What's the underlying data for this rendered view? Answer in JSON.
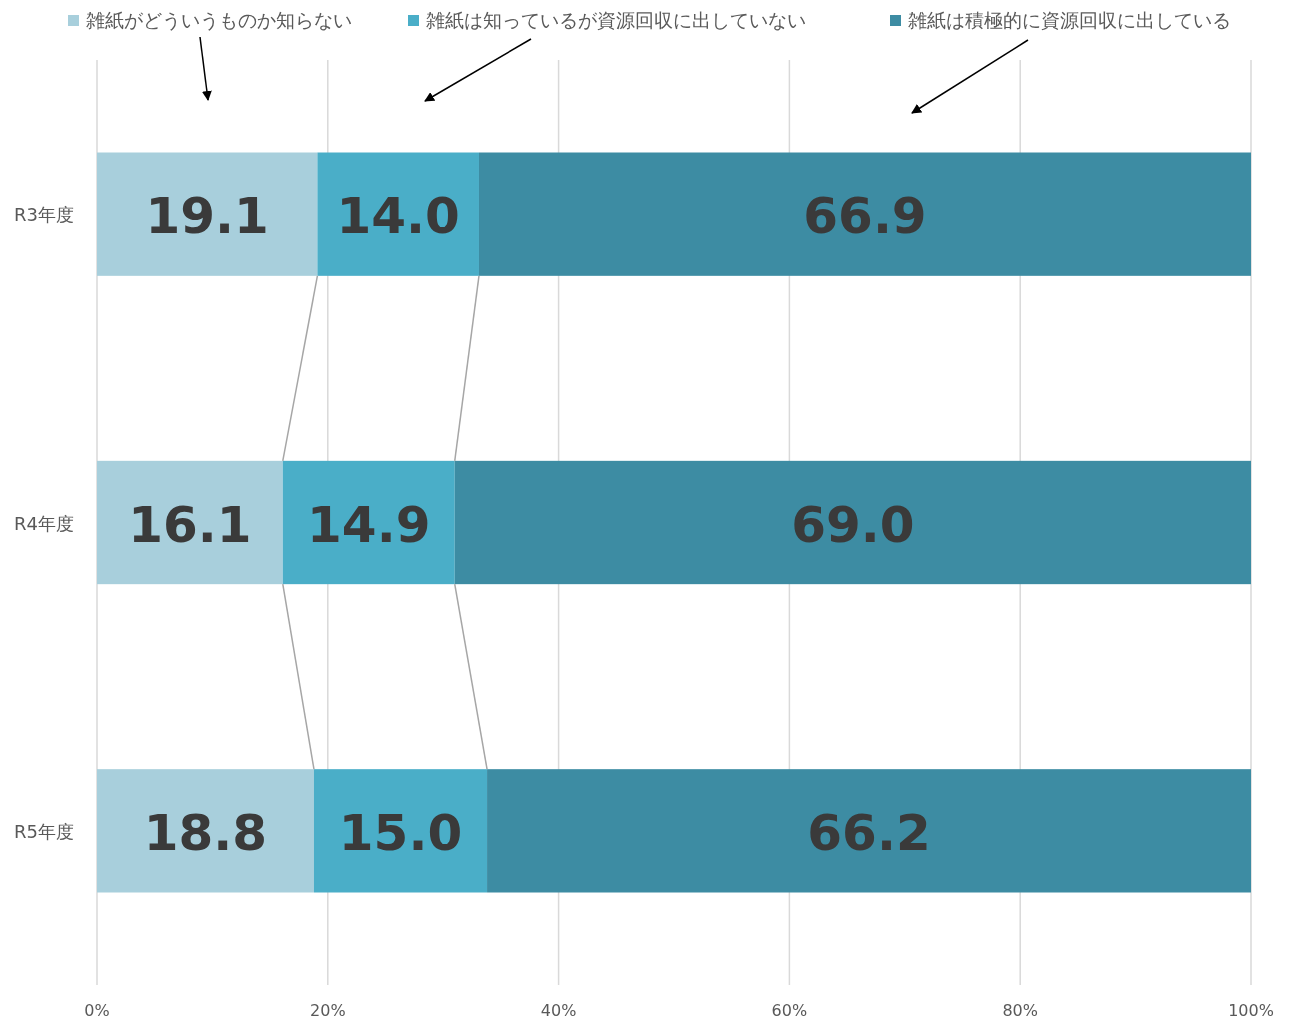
{
  "chart_data": {
    "type": "bar",
    "orientation": "horizontal",
    "stacked": true,
    "categories": [
      "R3年度",
      "R4年度",
      "R5年度"
    ],
    "series": [
      {
        "name": "雑紙がどういうものか知らない",
        "color": "#a8cfdc",
        "values": [
          19.1,
          16.1,
          18.8
        ],
        "value_labels": [
          "19.1",
          "16.1",
          "18.8"
        ]
      },
      {
        "name": "雑紙は知っているが資源回収に出していない",
        "color": "#4aaec8",
        "values": [
          14.0,
          14.9,
          15.0
        ],
        "value_labels": [
          "14.0",
          "14.9",
          "15.0"
        ]
      },
      {
        "name": "雑紙は積極的に資源回収に出している",
        "color": "#3d8ca3",
        "values": [
          66.9,
          69.0,
          66.2
        ],
        "value_labels": [
          "66.9",
          "69.0",
          "66.2"
        ]
      }
    ],
    "xlim": [
      0,
      100
    ],
    "xticks": [
      {
        "value": 0,
        "label": "0%"
      },
      {
        "value": 20,
        "label": "20%"
      },
      {
        "value": 40,
        "label": "40%"
      },
      {
        "value": 60,
        "label": "60%"
      },
      {
        "value": 80,
        "label": "80%"
      },
      {
        "value": 100,
        "label": "100%"
      }
    ],
    "grid": "x",
    "legend": "top"
  }
}
